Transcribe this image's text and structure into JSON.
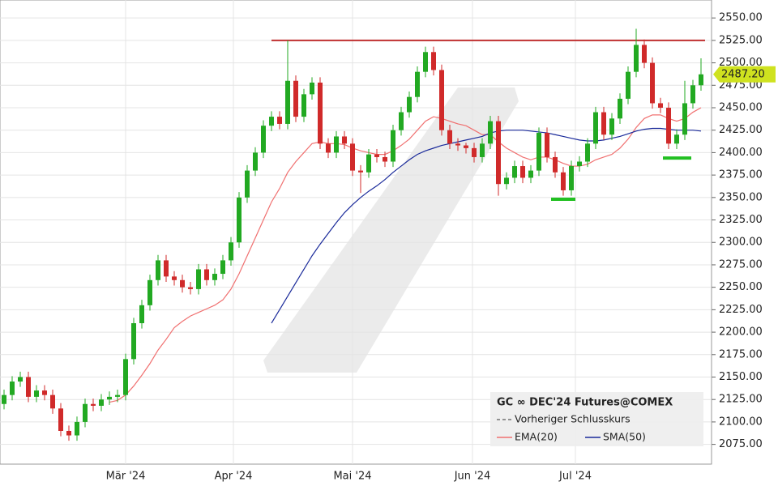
{
  "chart_data": {
    "type": "candlestick",
    "title": "GC ∞ DEC'24 Futures@COMEX",
    "legend": [
      "Vorheriger Schlusskurs"
    ],
    "up_color": "#22a922",
    "down_color": "#d02a2a",
    "open": [
      2120,
      2130,
      2145,
      2150,
      2128,
      2135,
      2130,
      2115,
      2090,
      2085,
      2100,
      2120,
      2118,
      2125,
      2128,
      2130,
      2170,
      2210,
      2230,
      2258,
      2280,
      2262,
      2258,
      2250,
      2248,
      2270,
      2258,
      2265,
      2280,
      2300,
      2350,
      2380,
      2400,
      2430,
      2440,
      2432,
      2480,
      2440,
      2465,
      2478,
      2410,
      2400,
      2418,
      2410,
      2380,
      2378,
      2398,
      2395,
      2390,
      2425,
      2445,
      2462,
      2490,
      2512,
      2492,
      2425,
      2410,
      2408,
      2405,
      2395,
      2410,
      2435,
      2365,
      2372,
      2385,
      2372,
      2380,
      2422,
      2395,
      2378,
      2358,
      2385,
      2390,
      2410,
      2445,
      2420,
      2438,
      2460,
      2490,
      2520,
      2500,
      2455,
      2450,
      2410,
      2420,
      2455,
      2475
    ],
    "high": [
      2136,
      2151,
      2156,
      2156,
      2141,
      2141,
      2136,
      2121,
      2096,
      2106,
      2126,
      2126,
      2131,
      2134,
      2136,
      2176,
      2216,
      2236,
      2264,
      2286,
      2286,
      2268,
      2264,
      2256,
      2276,
      2276,
      2271,
      2286,
      2306,
      2356,
      2386,
      2406,
      2436,
      2446,
      2446,
      2525,
      2486,
      2471,
      2484,
      2484,
      2416,
      2424,
      2424,
      2416,
      2386,
      2404,
      2404,
      2401,
      2431,
      2451,
      2468,
      2496,
      2518,
      2518,
      2498,
      2431,
      2416,
      2411,
      2411,
      2416,
      2441,
      2441,
      2378,
      2391,
      2391,
      2386,
      2428,
      2428,
      2401,
      2384,
      2391,
      2396,
      2416,
      2451,
      2451,
      2444,
      2466,
      2496,
      2538,
      2526,
      2506,
      2461,
      2456,
      2426,
      2480,
      2481,
      2505
    ],
    "low": [
      2114,
      2124,
      2139,
      2122,
      2122,
      2124,
      2109,
      2084,
      2079,
      2079,
      2094,
      2112,
      2112,
      2119,
      2122,
      2124,
      2164,
      2204,
      2224,
      2252,
      2256,
      2252,
      2244,
      2242,
      2242,
      2252,
      2252,
      2259,
      2274,
      2294,
      2344,
      2374,
      2394,
      2424,
      2426,
      2426,
      2434,
      2434,
      2459,
      2404,
      2394,
      2394,
      2404,
      2374,
      2355,
      2372,
      2389,
      2384,
      2384,
      2419,
      2439,
      2456,
      2484,
      2486,
      2419,
      2404,
      2402,
      2399,
      2389,
      2389,
      2404,
      2352,
      2359,
      2366,
      2366,
      2366,
      2374,
      2389,
      2372,
      2352,
      2352,
      2379,
      2384,
      2404,
      2414,
      2414,
      2432,
      2454,
      2484,
      2494,
      2449,
      2444,
      2404,
      2404,
      2414,
      2449,
      2469
    ],
    "close": [
      2130,
      2145,
      2150,
      2128,
      2135,
      2130,
      2115,
      2090,
      2085,
      2100,
      2120,
      2118,
      2125,
      2128,
      2130,
      2170,
      2210,
      2230,
      2258,
      2280,
      2262,
      2258,
      2250,
      2248,
      2270,
      2258,
      2265,
      2280,
      2300,
      2350,
      2380,
      2400,
      2430,
      2440,
      2432,
      2480,
      2440,
      2465,
      2478,
      2410,
      2400,
      2418,
      2410,
      2380,
      2378,
      2398,
      2395,
      2390,
      2425,
      2445,
      2462,
      2490,
      2512,
      2492,
      2425,
      2410,
      2408,
      2405,
      2395,
      2410,
      2435,
      2365,
      2372,
      2385,
      2372,
      2380,
      2422,
      2395,
      2378,
      2358,
      2385,
      2390,
      2410,
      2445,
      2420,
      2438,
      2460,
      2490,
      2520,
      2500,
      2455,
      2450,
      2410,
      2420,
      2455,
      2475,
      2487.2
    ],
    "last_label": "2487.20",
    "series": [
      {
        "name": "EMA(20)",
        "color": "#f07070",
        "values": [
          null,
          null,
          null,
          null,
          null,
          null,
          null,
          null,
          null,
          null,
          null,
          null,
          null,
          2122,
          2124,
          2130,
          2140,
          2152,
          2165,
          2180,
          2192,
          2205,
          2212,
          2218,
          2222,
          2226,
          2230,
          2236,
          2248,
          2265,
          2285,
          2305,
          2325,
          2345,
          2360,
          2378,
          2390,
          2400,
          2410,
          2412,
          2410,
          2410,
          2409,
          2405,
          2402,
          2400,
          2398,
          2398,
          2402,
          2408,
          2415,
          2425,
          2435,
          2440,
          2438,
          2435,
          2432,
          2430,
          2425,
          2420,
          2420,
          2412,
          2405,
          2400,
          2395,
          2392,
          2395,
          2395,
          2392,
          2388,
          2385,
          2385,
          2387,
          2392,
          2395,
          2398,
          2405,
          2415,
          2428,
          2438,
          2442,
          2442,
          2438,
          2435,
          2438,
          2445,
          2450
        ]
      },
      {
        "name": "SMA(50)",
        "color": "#1a2a9a",
        "values": [
          null,
          null,
          null,
          null,
          null,
          null,
          null,
          null,
          null,
          null,
          null,
          null,
          null,
          null,
          null,
          null,
          null,
          null,
          null,
          null,
          null,
          null,
          null,
          null,
          null,
          null,
          null,
          null,
          null,
          null,
          null,
          null,
          null,
          2210,
          2225,
          2240,
          2255,
          2270,
          2285,
          2298,
          2310,
          2322,
          2333,
          2342,
          2350,
          2357,
          2363,
          2370,
          2378,
          2385,
          2392,
          2398,
          2402,
          2405,
          2408,
          2410,
          2412,
          2414,
          2416,
          2418,
          2422,
          2424,
          2425,
          2425,
          2425,
          2424,
          2423,
          2422,
          2420,
          2418,
          2416,
          2414,
          2413,
          2413,
          2414,
          2416,
          2418,
          2421,
          2424,
          2426,
          2427,
          2427,
          2426,
          2425,
          2425,
          2425,
          2424
        ]
      }
    ],
    "hlines": [
      {
        "value": 2525,
        "from": 33,
        "to": 86.5,
        "color": "#c03030"
      }
    ],
    "marks": [
      {
        "value": 2348,
        "from": 67.5,
        "to": 70.5,
        "color": "#22c022"
      },
      {
        "value": 2394,
        "from": 81.3,
        "to": 84.8,
        "color": "#22c022"
      }
    ],
    "ylim": [
      2053,
      2570
    ],
    "yticks": [
      {
        "value": 2075,
        "label": "2075.00"
      },
      {
        "value": 2100,
        "label": "2100.00"
      },
      {
        "value": 2125,
        "label": "2125.00"
      },
      {
        "value": 2150,
        "label": "2150.00"
      },
      {
        "value": 2175,
        "label": "2175.00"
      },
      {
        "value": 2200,
        "label": "2200.00"
      },
      {
        "value": 2225,
        "label": "2225.00"
      },
      {
        "value": 2250,
        "label": "2250.00"
      },
      {
        "value": 2275,
        "label": "2275.00"
      },
      {
        "value": 2300,
        "label": "2300.00"
      },
      {
        "value": 2325,
        "label": "2325.00"
      },
      {
        "value": 2350,
        "label": "2350.00"
      },
      {
        "value": 2375,
        "label": "2375.00"
      },
      {
        "value": 2400,
        "label": "2400.00"
      },
      {
        "value": 2425,
        "label": "2425.00"
      },
      {
        "value": 2450,
        "label": "2450.00"
      },
      {
        "value": 2475,
        "label": "2475.00"
      },
      {
        "value": 2500,
        "label": "2500.00"
      },
      {
        "value": 2525,
        "label": "2525.00"
      },
      {
        "value": 2550,
        "label": "2550.00"
      }
    ],
    "xticks": [
      {
        "value": 15,
        "label": "Mär '24"
      },
      {
        "value": 28.3,
        "label": "Apr '24"
      },
      {
        "value": 43,
        "label": "Mai '24"
      },
      {
        "value": 57.8,
        "label": "Jun '24"
      },
      {
        "value": 70.5,
        "label": "Jul '24"
      }
    ],
    "grid": true
  }
}
